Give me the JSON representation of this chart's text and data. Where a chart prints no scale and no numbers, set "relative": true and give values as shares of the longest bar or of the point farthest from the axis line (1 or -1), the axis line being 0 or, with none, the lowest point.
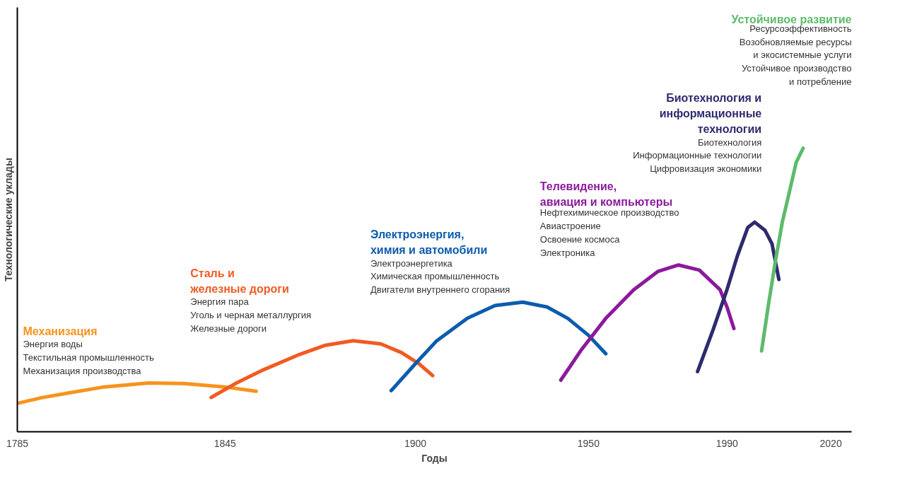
{
  "chart_data": {
    "type": "line",
    "relative": true,
    "xlabel": "Годы",
    "ylabel": "Технологические уклады",
    "xlim": [
      1785,
      2026
    ],
    "xticks": [
      1785,
      1845,
      1900,
      1950,
      1990,
      2020
    ],
    "grid": false,
    "marker": "none",
    "line_style": "solid",
    "tick_labels": "x",
    "series": [
      {
        "name": "Механизация",
        "color": "#f7931e",
        "x": [
          1785,
          1792,
          1800,
          1810,
          1823,
          1833,
          1845,
          1854
        ],
        "values": [
          0.1,
          0.12,
          0.137,
          0.158,
          0.172,
          0.17,
          0.158,
          0.143
        ]
      },
      {
        "name": "Сталь и\nжелезные дороги",
        "color": "#f15a22",
        "x": [
          1841,
          1848,
          1856,
          1866,
          1874,
          1882,
          1890,
          1896,
          1901,
          1905
        ],
        "values": [
          0.121,
          0.17,
          0.218,
          0.27,
          0.305,
          0.321,
          0.31,
          0.279,
          0.24,
          0.198
        ]
      },
      {
        "name": "Электроэнергия,\nхимия и автомобили",
        "color": "#0b5cad",
        "x": [
          1893,
          1900,
          1906,
          1915,
          1923,
          1931,
          1938,
          1944,
          1950,
          1955
        ],
        "values": [
          0.145,
          0.24,
          0.319,
          0.4,
          0.445,
          0.457,
          0.44,
          0.4,
          0.34,
          0.275
        ]
      },
      {
        "name": "Телевидение,\nавиация и компьютеры",
        "color": "#8b1a9b",
        "x": [
          1942,
          1948,
          1955,
          1963,
          1970,
          1976,
          1982,
          1988,
          1990,
          1992
        ],
        "values": [
          0.182,
          0.29,
          0.4,
          0.5,
          0.565,
          0.588,
          0.57,
          0.501,
          0.44,
          0.364
        ]
      },
      {
        "name": "Биотехнология и\nинформационные\nтехнологии",
        "color": "#2e2a6e",
        "x": [
          1981.5,
          1986,
          1990,
          1993,
          1996,
          1998,
          2001,
          2003,
          2005
        ],
        "values": [
          0.212,
          0.36,
          0.501,
          0.62,
          0.72,
          0.739,
          0.71,
          0.663,
          0.537
        ]
      },
      {
        "name": "Устойчивое развитие",
        "color": "#5dbb6b",
        "x": [
          2000,
          2002,
          2004,
          2006,
          2008,
          2010,
          2012
        ],
        "values": [
          0.285,
          0.45,
          0.602,
          0.74,
          0.844,
          0.95,
          1.0
        ]
      }
    ],
    "annotations": [
      "Энергия воды\nТекстильная промышленность\nМеханизация производства",
      "Энергия пара\nУголь и черная металлургия\nЖелезные дороги",
      "Электроэнергетика\nХимическая промышленность\nДвигатели внутреннего сгорания",
      "Нефтехимическое производство\nАвиастроение\nОсвоение космоса\nЭлектроника",
      "Биотехнология\nИнформационные технологии\nЦифровизация экономики",
      "Ресурсоэффективность\nВозобновляемые ресурсы\nи экосистемные услуги\nУстойчивое производство\nи потребление"
    ]
  }
}
